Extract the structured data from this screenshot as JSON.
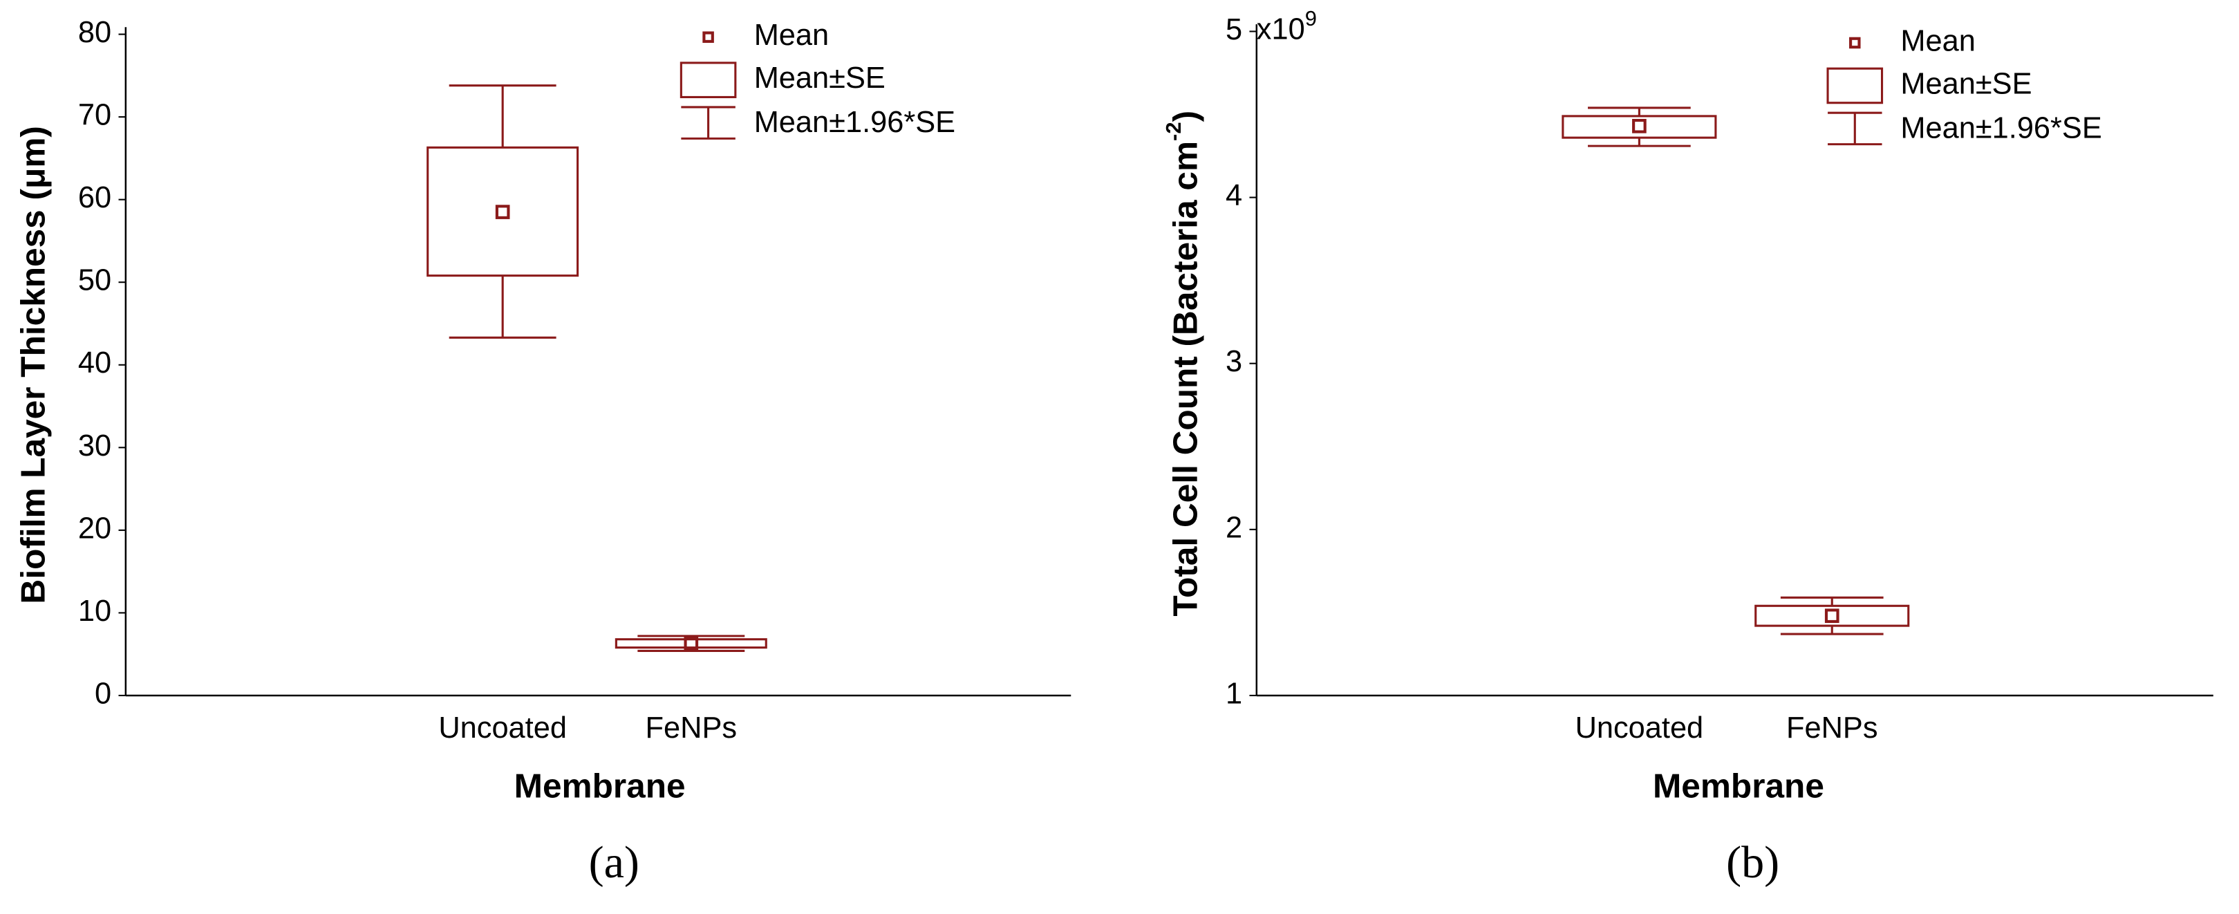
{
  "chart_data": [
    {
      "type": "box",
      "panel_label": "(a)",
      "ylabel": [
        "Biofilm Layer Thickness (μm)"
      ],
      "xlabel": "Membrane",
      "categories": [
        "Uncoated",
        "FeNPs"
      ],
      "color": "#8b1a1a",
      "mean": [
        58.5,
        6.3
      ],
      "box_low": [
        50.8,
        5.8
      ],
      "box_high": [
        66.3,
        6.8
      ],
      "whisker_low": [
        43.3,
        5.4
      ],
      "whisker_high": [
        73.8,
        7.2
      ],
      "legend": [
        "Mean",
        "Mean±SE",
        "Mean±1.96*SE"
      ],
      "ylim": [
        0,
        80
      ],
      "yticks": [
        0,
        10,
        20,
        30,
        40,
        50,
        60,
        70,
        80
      ]
    },
    {
      "type": "box",
      "panel_label": "(b)",
      "ylabel": [
        "Total Cell Count (Bacteria cm",
        "-2",
        ")"
      ],
      "xlabel": "Membrane",
      "axis_multiplier": [
        "x10",
        "9"
      ],
      "categories": [
        "Uncoated",
        "FeNPs"
      ],
      "color": "#8b1a1a",
      "mean": [
        4.43,
        1.48
      ],
      "box_low": [
        4.36,
        1.42
      ],
      "box_high": [
        4.49,
        1.54
      ],
      "whisker_low": [
        4.31,
        1.37
      ],
      "whisker_high": [
        4.54,
        1.59
      ],
      "legend": [
        "Mean",
        "Mean±SE",
        "Mean±1.96*SE"
      ],
      "ylim": [
        1,
        5
      ],
      "yticks": [
        1,
        2,
        3,
        4,
        5
      ]
    }
  ]
}
